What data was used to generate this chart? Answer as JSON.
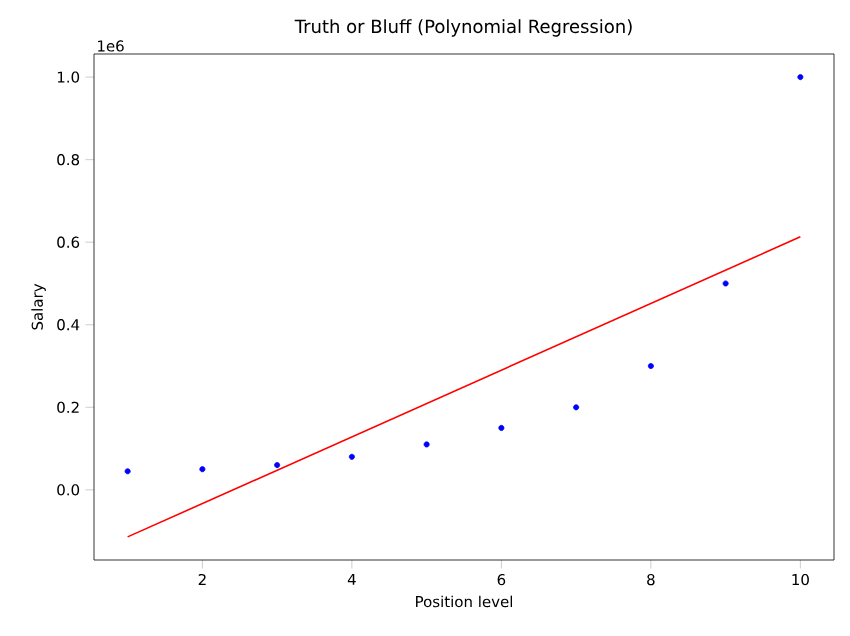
{
  "chart_data": {
    "type": "scatter",
    "title": "Truth or Bluff (Polynomial Regression)",
    "xlabel": "Position level",
    "ylabel": "Salary",
    "annotations": [
      "1e6"
    ],
    "x": [
      1,
      2,
      3,
      4,
      5,
      6,
      7,
      8,
      9,
      10
    ],
    "series": [
      {
        "color": "#0000ff",
        "marker": "circle",
        "values": [
          0.045,
          0.05,
          0.06,
          0.08,
          0.11,
          0.15,
          0.2,
          0.3,
          0.5,
          1.0
        ]
      },
      {
        "type": "line",
        "color": "#ff0000",
        "marker": "none",
        "x": [
          1,
          10
        ],
        "values": [
          -0.114,
          0.613
        ]
      }
    ],
    "xlim": [
      0.55,
      10.45
    ],
    "ylim": [
      -0.17,
      1.056
    ],
    "xticks": [
      2,
      4,
      6,
      8,
      10
    ],
    "yticks": [
      {
        "value": 0,
        "label": "0.0"
      },
      {
        "value": 0.2,
        "label": "0.2"
      },
      {
        "value": 0.4,
        "label": "0.4"
      },
      {
        "value": 0.6,
        "label": "0.6"
      },
      {
        "value": 0.8,
        "label": "0.8"
      },
      {
        "value": 1.0,
        "label": "1.0"
      }
    ]
  }
}
